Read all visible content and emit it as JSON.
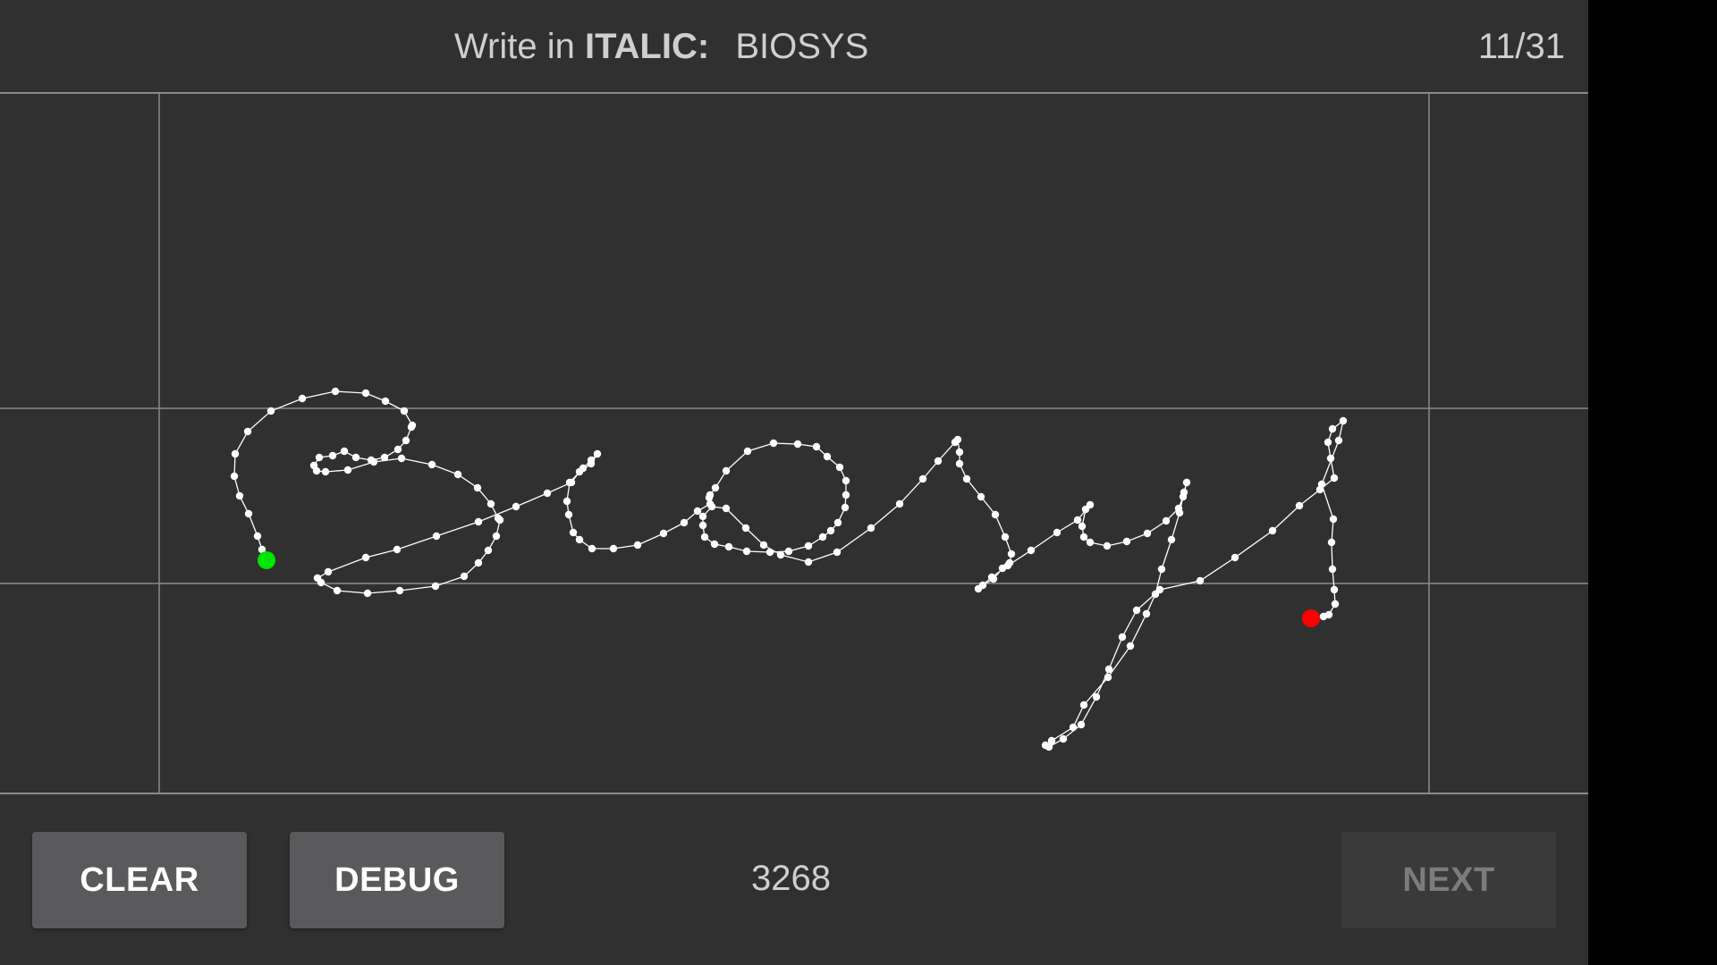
{
  "header": {
    "instruction_prefix": "Write in",
    "style_name": "ITALIC:",
    "target_word": "BIOSYS",
    "progress": "11/31"
  },
  "footer": {
    "clear_label": "CLEAR",
    "debug_label": "DEBUG",
    "point_count": "3268",
    "next_label": "NEXT"
  },
  "colors": {
    "background": "#303030",
    "guide_line": "#8a8a8a",
    "stroke": "#ffffff",
    "start_marker": "#00e600",
    "end_marker": "#ff0000"
  }
}
